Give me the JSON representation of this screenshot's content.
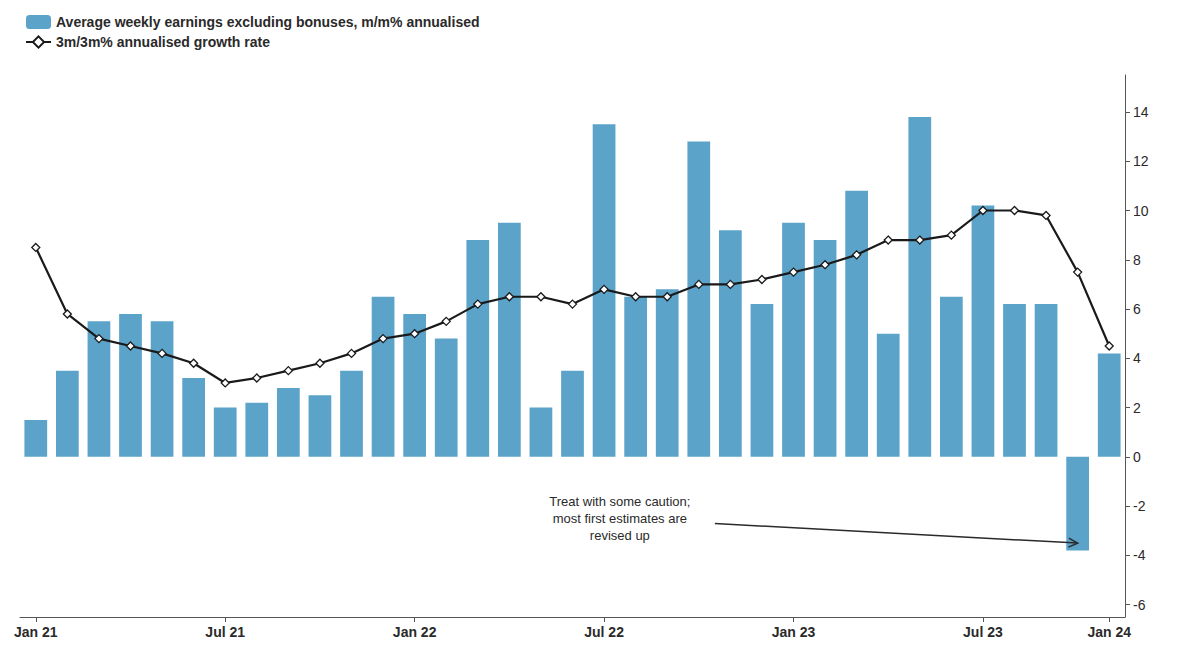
{
  "chart_data": {
    "type": "bar",
    "categories": [
      "Jan 21",
      null,
      null,
      null,
      null,
      null,
      "Jul 21",
      null,
      null,
      null,
      null,
      null,
      "Jan 22",
      null,
      null,
      null,
      null,
      null,
      "Jul 22",
      null,
      null,
      null,
      null,
      null,
      "Jan 23",
      null,
      null,
      null,
      null,
      null,
      "Jul 23",
      null,
      null,
      null,
      "Jan 24"
    ],
    "series": [
      {
        "name": "Average weekly earnings excluding bonuses, m/m% annualised",
        "type": "bar",
        "color": "#5ba3c9",
        "values": [
          1.5,
          3.5,
          5.5,
          5.8,
          5.5,
          3.2,
          2.0,
          2.2,
          2.8,
          2.5,
          3.5,
          6.5,
          5.8,
          4.8,
          8.8,
          9.5,
          2.0,
          3.5,
          13.5,
          6.5,
          6.8,
          12.8,
          9.2,
          6.2,
          9.5,
          8.8,
          10.8,
          5.0,
          13.8,
          6.5,
          10.2,
          6.2,
          6.2,
          -3.8,
          4.2
        ]
      },
      {
        "name": "3m/3m% annualised growth rate",
        "type": "line",
        "color": "#1a1a1a",
        "marker": "diamond",
        "values": [
          8.5,
          5.8,
          4.8,
          4.5,
          4.2,
          3.8,
          3.0,
          3.2,
          3.5,
          3.8,
          4.2,
          4.8,
          5.0,
          5.5,
          6.2,
          6.5,
          6.5,
          6.2,
          6.8,
          6.5,
          6.5,
          7.0,
          7.0,
          7.2,
          7.5,
          7.8,
          8.2,
          8.8,
          8.8,
          9.0,
          10.0,
          10.0,
          9.8,
          7.5,
          4.5
        ]
      }
    ],
    "ylim": [
      -6.5,
      15.5
    ],
    "yticks": [
      -6,
      -4,
      -2,
      0,
      2,
      4,
      6,
      8,
      10,
      12,
      14
    ],
    "grid": false,
    "legend": "upper left",
    "annotations": [
      {
        "text": "Treat with some caution;\nmost first estimates are\nrevised up",
        "x": 18.5,
        "y": -2.5,
        "arrow_x": 33,
        "arrow_y": -3.5
      }
    ]
  }
}
